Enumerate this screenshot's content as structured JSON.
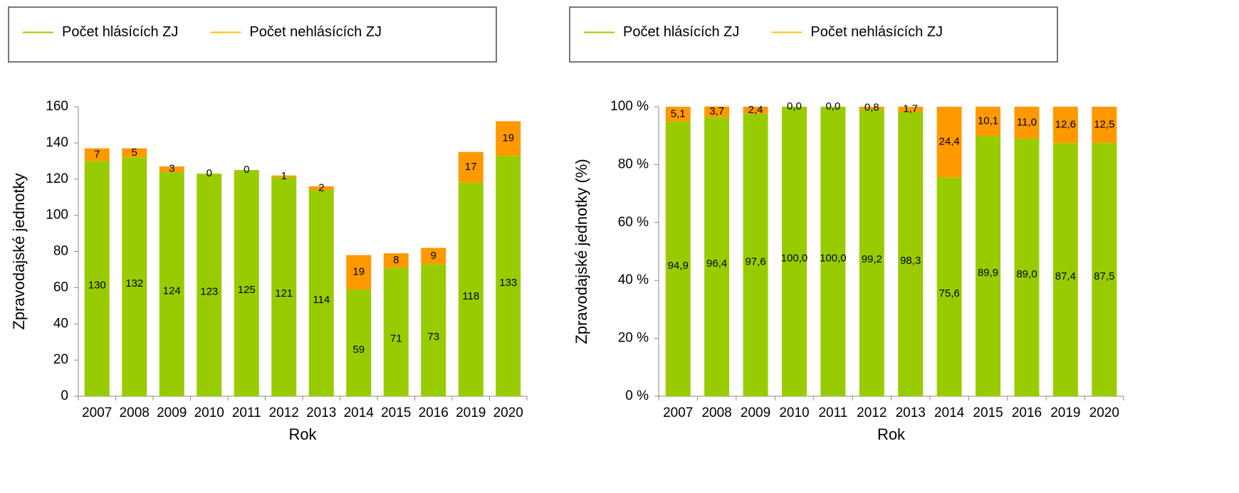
{
  "chart_data": [
    {
      "type": "bar",
      "stacked": true,
      "legend": "top",
      "x_label": "Rok",
      "y_label": "Zpravodajské jednotky",
      "categories": [
        "2007",
        "2008",
        "2009",
        "2010",
        "2011",
        "2012",
        "2013",
        "2014",
        "2015",
        "2016",
        "2019",
        "2020"
      ],
      "series": [
        {
          "name": "Počet hlásících ZJ",
          "color": "#99cc00",
          "values": [
            130,
            132,
            124,
            123,
            125,
            121,
            114,
            59,
            71,
            73,
            118,
            133
          ]
        },
        {
          "name": "Počet nehlásících ZJ",
          "color": "#ff9900",
          "legend_color": "#ffc000",
          "values": [
            7,
            5,
            3,
            0,
            0,
            1,
            2,
            19,
            8,
            9,
            17,
            19
          ]
        }
      ],
      "ylim": [
        0,
        160
      ],
      "yticks": [
        0,
        20,
        40,
        60,
        80,
        100,
        120,
        140,
        160
      ]
    },
    {
      "type": "bar",
      "stacked": true,
      "legend": "top",
      "x_label": "Rok",
      "y_label": "Zpravodajské jednotky (%)",
      "categories": [
        "2007",
        "2008",
        "2009",
        "2010",
        "2011",
        "2012",
        "2013",
        "2014",
        "2015",
        "2016",
        "2019",
        "2020"
      ],
      "series": [
        {
          "name": "Počet hlásících ZJ",
          "color": "#99cc00",
          "values": [
            94.9,
            96.4,
            97.6,
            100.0,
            100.0,
            99.2,
            98.3,
            75.6,
            89.9,
            89.0,
            87.4,
            87.5
          ],
          "value_labels": [
            "94,9",
            "96,4",
            "97,6",
            "100,0",
            "100,0",
            "99,2",
            "98,3",
            "75,6",
            "89,9",
            "89,0",
            "87,4",
            "87,5"
          ]
        },
        {
          "name": "Počet nehlásících ZJ",
          "color": "#ff9900",
          "legend_color": "#ffc000",
          "values": [
            5.1,
            3.7,
            2.4,
            0.0,
            0.0,
            0.8,
            1.7,
            24.4,
            10.1,
            11.0,
            12.6,
            12.5
          ],
          "value_labels": [
            "5,1",
            "3,7",
            "2,4",
            "0,0",
            "0,0",
            "0,8",
            "1,7",
            "24,4",
            "10,1",
            "11,0",
            "12,6",
            "12,5"
          ]
        }
      ],
      "ylim": [
        0,
        100
      ],
      "yticks": [
        {
          "value": 0,
          "label": "0 %"
        },
        {
          "value": 20,
          "label": "20 %"
        },
        {
          "value": 40,
          "label": "40 %"
        },
        {
          "value": 60,
          "label": "60 %"
        },
        {
          "value": 80,
          "label": "80 %"
        },
        {
          "value": 100,
          "label": "100 %"
        }
      ]
    }
  ]
}
